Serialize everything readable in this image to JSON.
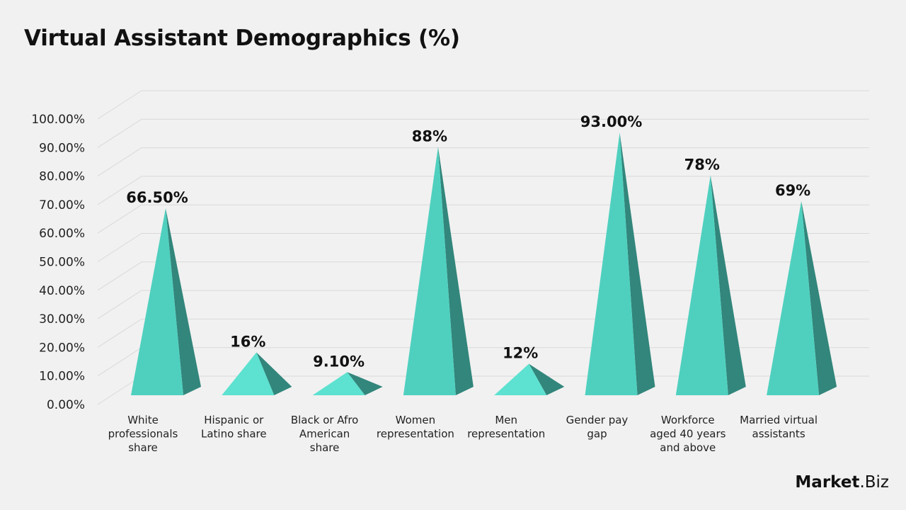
{
  "title": "Virtual Assistant Demographics (%)",
  "brand": {
    "name_bold": "Market",
    "name_rest": ".Biz"
  },
  "colors": {
    "front": "#4fd0bf",
    "side": "#32867b",
    "accent_front": "#5de1d0",
    "grid": "#d9d9d9"
  },
  "chart_data": {
    "type": "bar",
    "style": "3d-pyramid",
    "title": "Virtual Assistant Demographics (%)",
    "xlabel": "",
    "ylabel": "",
    "ylim": [
      0,
      100
    ],
    "y_ticks": [
      "0.00%",
      "10.00%",
      "20.00%",
      "30.00%",
      "40.00%",
      "50.00%",
      "60.00%",
      "70.00%",
      "80.00%",
      "90.00%",
      "100.00%"
    ],
    "grid": true,
    "categories": [
      [
        "White",
        "professionals",
        "share"
      ],
      [
        "Hispanic or",
        "Latino share"
      ],
      [
        "Black or Afro",
        "American",
        "share"
      ],
      [
        "Women",
        "representation"
      ],
      [
        "Men",
        "representation"
      ],
      [
        "Gender pay",
        "gap"
      ],
      [
        "Workforce",
        "aged 40 years",
        "and above"
      ],
      [
        "Married virtual",
        "assistants"
      ]
    ],
    "values": [
      66.5,
      16,
      9.1,
      88,
      12,
      93,
      78,
      69
    ],
    "data_labels": [
      "66.50%",
      "16%",
      "9.10%",
      "88%",
      "12%",
      "93.00%",
      "78%",
      "69%"
    ]
  }
}
